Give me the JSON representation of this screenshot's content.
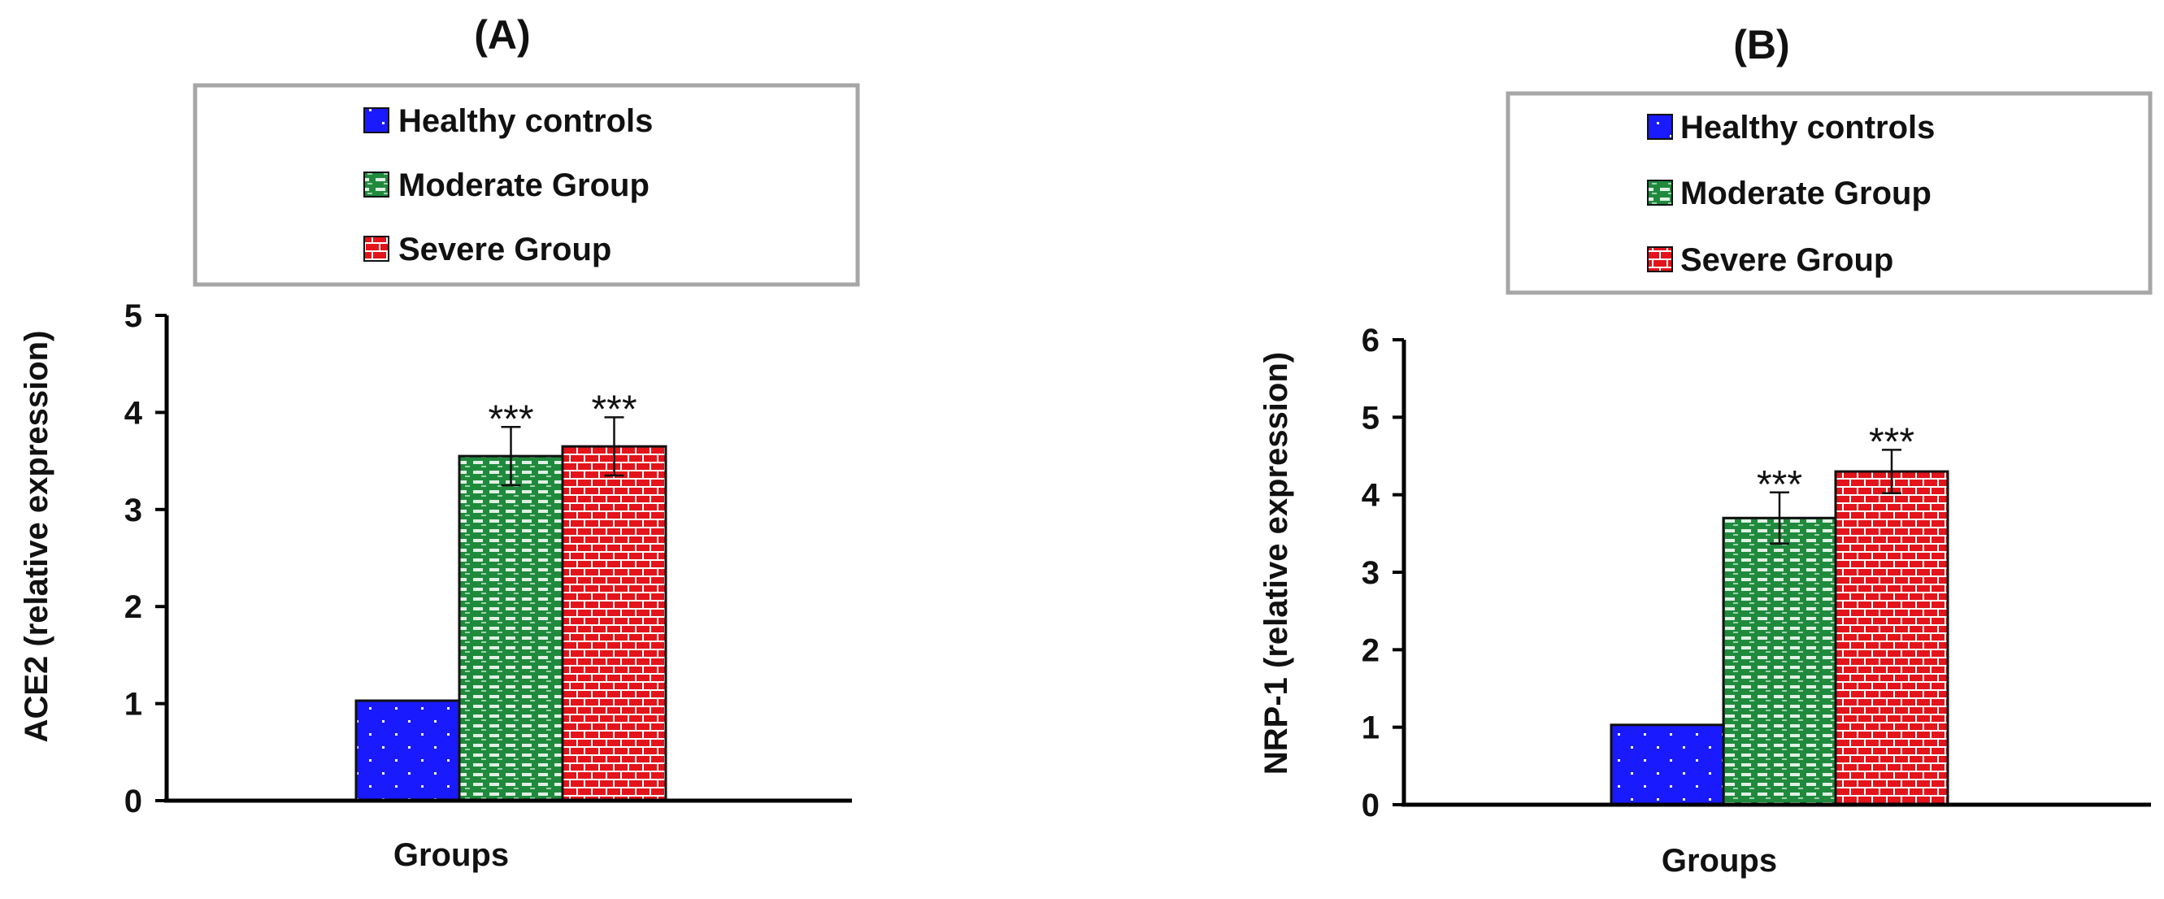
{
  "chart_data": [
    {
      "type": "bar",
      "title": "(A)",
      "xlabel": "Groups",
      "ylabel": "ACE2 (relative expression)",
      "ylim": [
        0,
        5
      ],
      "yticks": [
        "0",
        "1",
        "2",
        "3",
        "4",
        "5"
      ],
      "grid": false,
      "legend_position": "top",
      "series": [
        {
          "name": "Healthy controls",
          "value": 1.03,
          "error": 0,
          "significance": "",
          "color": "#1a1aff",
          "pattern": "dots"
        },
        {
          "name": "Moderate Group",
          "value": 3.55,
          "error": 0.3,
          "significance": "***",
          "color": "#1f8a3c",
          "pattern": "dashes"
        },
        {
          "name": "Severe Group",
          "value": 3.65,
          "error": 0.3,
          "significance": "***",
          "color": "#e3141b",
          "pattern": "bricks"
        }
      ]
    },
    {
      "type": "bar",
      "title": "(B)",
      "xlabel": "Groups",
      "ylabel": "NRP-1 (relative expression)",
      "ylim": [
        0,
        6
      ],
      "yticks": [
        "0",
        "1",
        "2",
        "3",
        "4",
        "5",
        "6"
      ],
      "grid": false,
      "legend_position": "top",
      "series": [
        {
          "name": "Healthy controls",
          "value": 1.03,
          "error": 0,
          "significance": "",
          "color": "#1a1aff",
          "pattern": "dots"
        },
        {
          "name": "Moderate Group",
          "value": 3.7,
          "error": 0.33,
          "significance": "***",
          "color": "#1f8a3c",
          "pattern": "dashes"
        },
        {
          "name": "Severe Group",
          "value": 4.3,
          "error": 0.28,
          "significance": "***",
          "color": "#e3141b",
          "pattern": "bricks"
        }
      ]
    }
  ]
}
